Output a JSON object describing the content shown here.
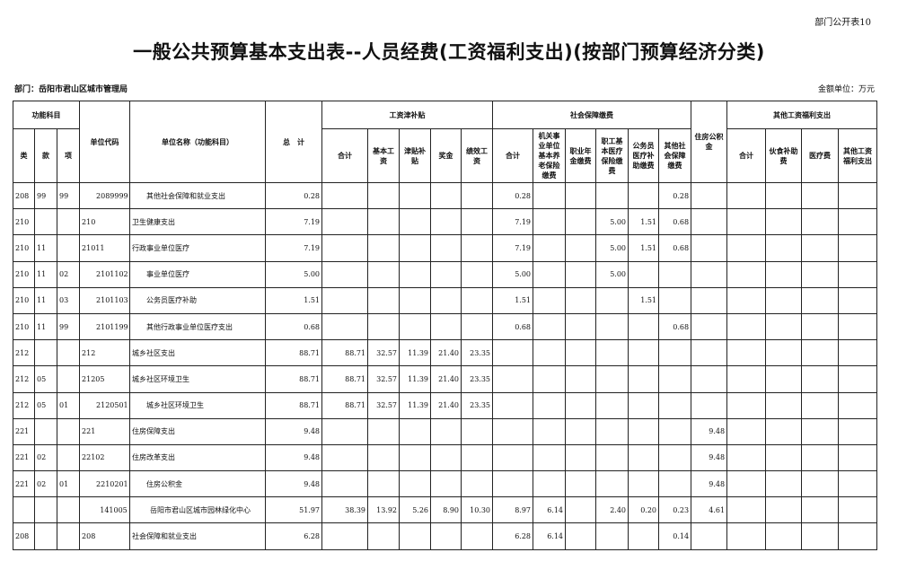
{
  "form_number": "部门公开表10",
  "title": "一般公共预算基本支出表--人员经费(工资福利支出)(按部门预算经济分类)",
  "department": "部门：岳阳市君山区城市管理局",
  "unit": "金额单位：万元",
  "headers": {
    "func_subject": "功能科目",
    "lei": "类",
    "kuan": "款",
    "xiang": "项",
    "unit_code": "单位代码",
    "unit_name": "单位名称（功能科目）",
    "total": "总　计",
    "wage_group": "工资津补贴",
    "wage_cols": [
      "合计",
      "基本工资",
      "津贴补贴",
      "奖金",
      "绩效工资"
    ],
    "social_group": "社会保障缴费",
    "social_cols": [
      "合计",
      "机关事业单位基本养老保险缴费",
      "职业年金缴费",
      "职工基本医疗保险缴费",
      "公务员医疗补助缴费",
      "其他社会保障缴费"
    ],
    "housing": "住房公积金",
    "other_group": "其他工资福利支出",
    "other_cols": [
      "合计",
      "伙食补助费",
      "医疗费",
      "其他工资福利支出"
    ]
  },
  "rows": [
    {
      "lei": "208",
      "kuan": "99",
      "xiang": "99",
      "code": "2089999",
      "name": "其他社会保障和就业支出",
      "indent": 2,
      "vals": [
        "0.28",
        "",
        "",
        "",
        "",
        "",
        "0.28",
        "",
        "",
        "",
        "",
        "0.28",
        "",
        "",
        "",
        "",
        ""
      ]
    },
    {
      "lei": "210",
      "kuan": "",
      "xiang": "",
      "code": "210",
      "name": "卫生健康支出",
      "indent": 0,
      "vals": [
        "7.19",
        "",
        "",
        "",
        "",
        "",
        "7.19",
        "",
        "",
        "5.00",
        "1.51",
        "0.68",
        "",
        "",
        "",
        "",
        ""
      ]
    },
    {
      "lei": "210",
      "kuan": "11",
      "xiang": "",
      "code": "21011",
      "name": "行政事业单位医疗",
      "indent": 0,
      "vals": [
        "7.19",
        "",
        "",
        "",
        "",
        "",
        "7.19",
        "",
        "",
        "5.00",
        "1.51",
        "0.68",
        "",
        "",
        "",
        "",
        ""
      ]
    },
    {
      "lei": "210",
      "kuan": "11",
      "xiang": "02",
      "code": "2101102",
      "name": "事业单位医疗",
      "indent": 2,
      "vals": [
        "5.00",
        "",
        "",
        "",
        "",
        "",
        "5.00",
        "",
        "",
        "5.00",
        "",
        "",
        "",
        "",
        "",
        "",
        ""
      ]
    },
    {
      "lei": "210",
      "kuan": "11",
      "xiang": "03",
      "code": "2101103",
      "name": "公务员医疗补助",
      "indent": 2,
      "vals": [
        "1.51",
        "",
        "",
        "",
        "",
        "",
        "1.51",
        "",
        "",
        "",
        "1.51",
        "",
        "",
        "",
        "",
        "",
        ""
      ]
    },
    {
      "lei": "210",
      "kuan": "11",
      "xiang": "99",
      "code": "2101199",
      "name": "其他行政事业单位医疗支出",
      "indent": 2,
      "vals": [
        "0.68",
        "",
        "",
        "",
        "",
        "",
        "0.68",
        "",
        "",
        "",
        "",
        "0.68",
        "",
        "",
        "",
        "",
        ""
      ]
    },
    {
      "lei": "212",
      "kuan": "",
      "xiang": "",
      "code": "212",
      "name": "城乡社区支出",
      "indent": 0,
      "vals": [
        "88.71",
        "88.71",
        "32.57",
        "11.39",
        "21.40",
        "23.35",
        "",
        "",
        "",
        "",
        "",
        "",
        "",
        "",
        "",
        "",
        ""
      ]
    },
    {
      "lei": "212",
      "kuan": "05",
      "xiang": "",
      "code": "21205",
      "name": "城乡社区环境卫生",
      "indent": 0,
      "vals": [
        "88.71",
        "88.71",
        "32.57",
        "11.39",
        "21.40",
        "23.35",
        "",
        "",
        "",
        "",
        "",
        "",
        "",
        "",
        "",
        "",
        ""
      ]
    },
    {
      "lei": "212",
      "kuan": "05",
      "xiang": "01",
      "code": "2120501",
      "name": "城乡社区环境卫生",
      "indent": 2,
      "vals": [
        "88.71",
        "88.71",
        "32.57",
        "11.39",
        "21.40",
        "23.35",
        "",
        "",
        "",
        "",
        "",
        "",
        "",
        "",
        "",
        "",
        ""
      ]
    },
    {
      "lei": "221",
      "kuan": "",
      "xiang": "",
      "code": "221",
      "name": "住房保障支出",
      "indent": 0,
      "vals": [
        "9.48",
        "",
        "",
        "",
        "",
        "",
        "",
        "",
        "",
        "",
        "",
        "",
        "9.48",
        "",
        "",
        "",
        ""
      ]
    },
    {
      "lei": "221",
      "kuan": "02",
      "xiang": "",
      "code": "22102",
      "name": "住房改革支出",
      "indent": 0,
      "vals": [
        "9.48",
        "",
        "",
        "",
        "",
        "",
        "",
        "",
        "",
        "",
        "",
        "",
        "9.48",
        "",
        "",
        "",
        ""
      ]
    },
    {
      "lei": "221",
      "kuan": "02",
      "xiang": "01",
      "code": "2210201",
      "name": "住房公积金",
      "indent": 2,
      "vals": [
        "9.48",
        "",
        "",
        "",
        "",
        "",
        "",
        "",
        "",
        "",
        "",
        "",
        "9.48",
        "",
        "",
        "",
        ""
      ]
    },
    {
      "lei": "",
      "kuan": "",
      "xiang": "",
      "code": "141005",
      "name": "岳阳市君山区城市园林绿化中心",
      "indent": 1,
      "vals": [
        "51.97",
        "38.39",
        "13.92",
        "5.26",
        "8.90",
        "10.30",
        "8.97",
        "6.14",
        "",
        "2.40",
        "0.20",
        "0.23",
        "4.61",
        "",
        "",
        "",
        ""
      ]
    },
    {
      "lei": "208",
      "kuan": "",
      "xiang": "",
      "code": "208",
      "name": "社会保障和就业支出",
      "indent": 0,
      "vals": [
        "6.28",
        "",
        "",
        "",
        "",
        "",
        "6.28",
        "6.14",
        "",
        "",
        "",
        "0.14",
        "",
        "",
        "",
        "",
        ""
      ]
    }
  ]
}
